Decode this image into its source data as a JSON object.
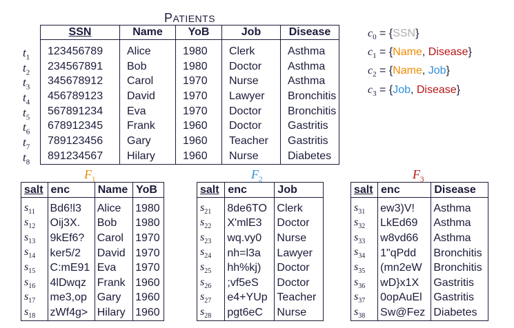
{
  "main_table": {
    "title_first": "P",
    "title_rest": "ATIENTS",
    "headers": [
      "SSN",
      "Name",
      "YoB",
      "Job",
      "Disease"
    ],
    "row_labels": [
      "t",
      "t",
      "t",
      "t",
      "t",
      "t",
      "t",
      "t"
    ],
    "row_subscripts": [
      "1",
      "2",
      "3",
      "4",
      "5",
      "6",
      "7",
      "8"
    ],
    "rows": [
      [
        "123456789",
        "Alice",
        "1980",
        "Clerk",
        "Asthma"
      ],
      [
        "234567891",
        "Bob",
        "1980",
        "Doctor",
        "Asthma"
      ],
      [
        "345678912",
        "Carol",
        "1970",
        "Nurse",
        "Asthma"
      ],
      [
        "456789123",
        "David",
        "1970",
        "Lawyer",
        "Bronchitis"
      ],
      [
        "567891234",
        "Eva",
        "1970",
        "Doctor",
        "Bronchitis"
      ],
      [
        "678912345",
        "Frank",
        "1960",
        "Doctor",
        "Gastritis"
      ],
      [
        "789123456",
        "Gary",
        "1960",
        "Teacher",
        "Gastritis"
      ],
      [
        "891234567",
        "Hilary",
        "1960",
        "Nurse",
        "Diabetes"
      ]
    ]
  },
  "constraints": [
    {
      "symbol": "c",
      "sub": "0",
      "open": " = {",
      "items": [
        {
          "text": "SSN",
          "color": "#b0b0b0"
        }
      ],
      "close": "}"
    },
    {
      "symbol": "c",
      "sub": "1",
      "open": " = {",
      "items": [
        {
          "text": "Name",
          "color": "#f08a00"
        },
        {
          "text": "Disease",
          "color": "#b51414"
        }
      ],
      "close": "}"
    },
    {
      "symbol": "c",
      "sub": "2",
      "open": " = {",
      "items": [
        {
          "text": "Name",
          "color": "#f08a00"
        },
        {
          "text": "Job",
          "color": "#2f8fd8"
        }
      ],
      "close": "}"
    },
    {
      "symbol": "c",
      "sub": "3",
      "open": " = {",
      "items": [
        {
          "text": "Job",
          "color": "#2f8fd8"
        },
        {
          "text": "Disease",
          "color": "#b51414"
        }
      ],
      "close": "}"
    }
  ],
  "fragments": [
    {
      "name": "F",
      "sub": "1",
      "color": "#f08a00",
      "headers": [
        "salt",
        "enc",
        "Name",
        "YoB"
      ],
      "salt_subs": [
        "11",
        "12",
        "13",
        "14",
        "15",
        "16",
        "17",
        "18"
      ],
      "rows": [
        [
          "Bd6!l3",
          "Alice",
          "1980"
        ],
        [
          "Oij3X.",
          "Bob",
          "1980"
        ],
        [
          "9kEf6?",
          "Carol",
          "1970"
        ],
        [
          "ker5/2",
          "David",
          "1970"
        ],
        [
          "C:mE91",
          "Eva",
          "1970"
        ],
        [
          "4lDwqz",
          "Frank",
          "1960"
        ],
        [
          "me3,op",
          "Gary",
          "1960"
        ],
        [
          "zWf4g>",
          "Hilary",
          "1960"
        ]
      ]
    },
    {
      "name": "F",
      "sub": "2",
      "color": "#2f8fd8",
      "headers": [
        "salt",
        "enc",
        "Job"
      ],
      "salt_subs": [
        "21",
        "22",
        "23",
        "24",
        "25",
        "26",
        "27",
        "28"
      ],
      "rows": [
        [
          "8de6TO",
          "Clerk"
        ],
        [
          "X'mlE3",
          "Doctor"
        ],
        [
          "wq.vy0",
          "Nurse"
        ],
        [
          "nh=l3a",
          "Lawyer"
        ],
        [
          "hh%kj)",
          "Doctor"
        ],
        [
          ";vf5eS",
          "Doctor"
        ],
        [
          "e4+YUp",
          "Teacher"
        ],
        [
          "pgt6eC",
          "Nurse"
        ]
      ]
    },
    {
      "name": "F",
      "sub": "3",
      "color": "#b51414",
      "headers": [
        "salt",
        "enc",
        "Disease"
      ],
      "salt_subs": [
        "31",
        "32",
        "33",
        "34",
        "35",
        "36",
        "37",
        "38"
      ],
      "rows": [
        [
          "ew3)V!",
          "Asthma"
        ],
        [
          "LkEd69",
          "Asthma"
        ],
        [
          "w8vd66",
          "Asthma"
        ],
        [
          "1\"qPdd",
          "Bronchitis"
        ],
        [
          "(mn2eW",
          "Bronchitis"
        ],
        [
          "wD}x1X",
          "Gastritis"
        ],
        [
          "0opAuEl",
          "Gastritis"
        ],
        [
          "Sw@Fez",
          "Diabetes"
        ]
      ]
    }
  ],
  "salt_symbol": "s"
}
